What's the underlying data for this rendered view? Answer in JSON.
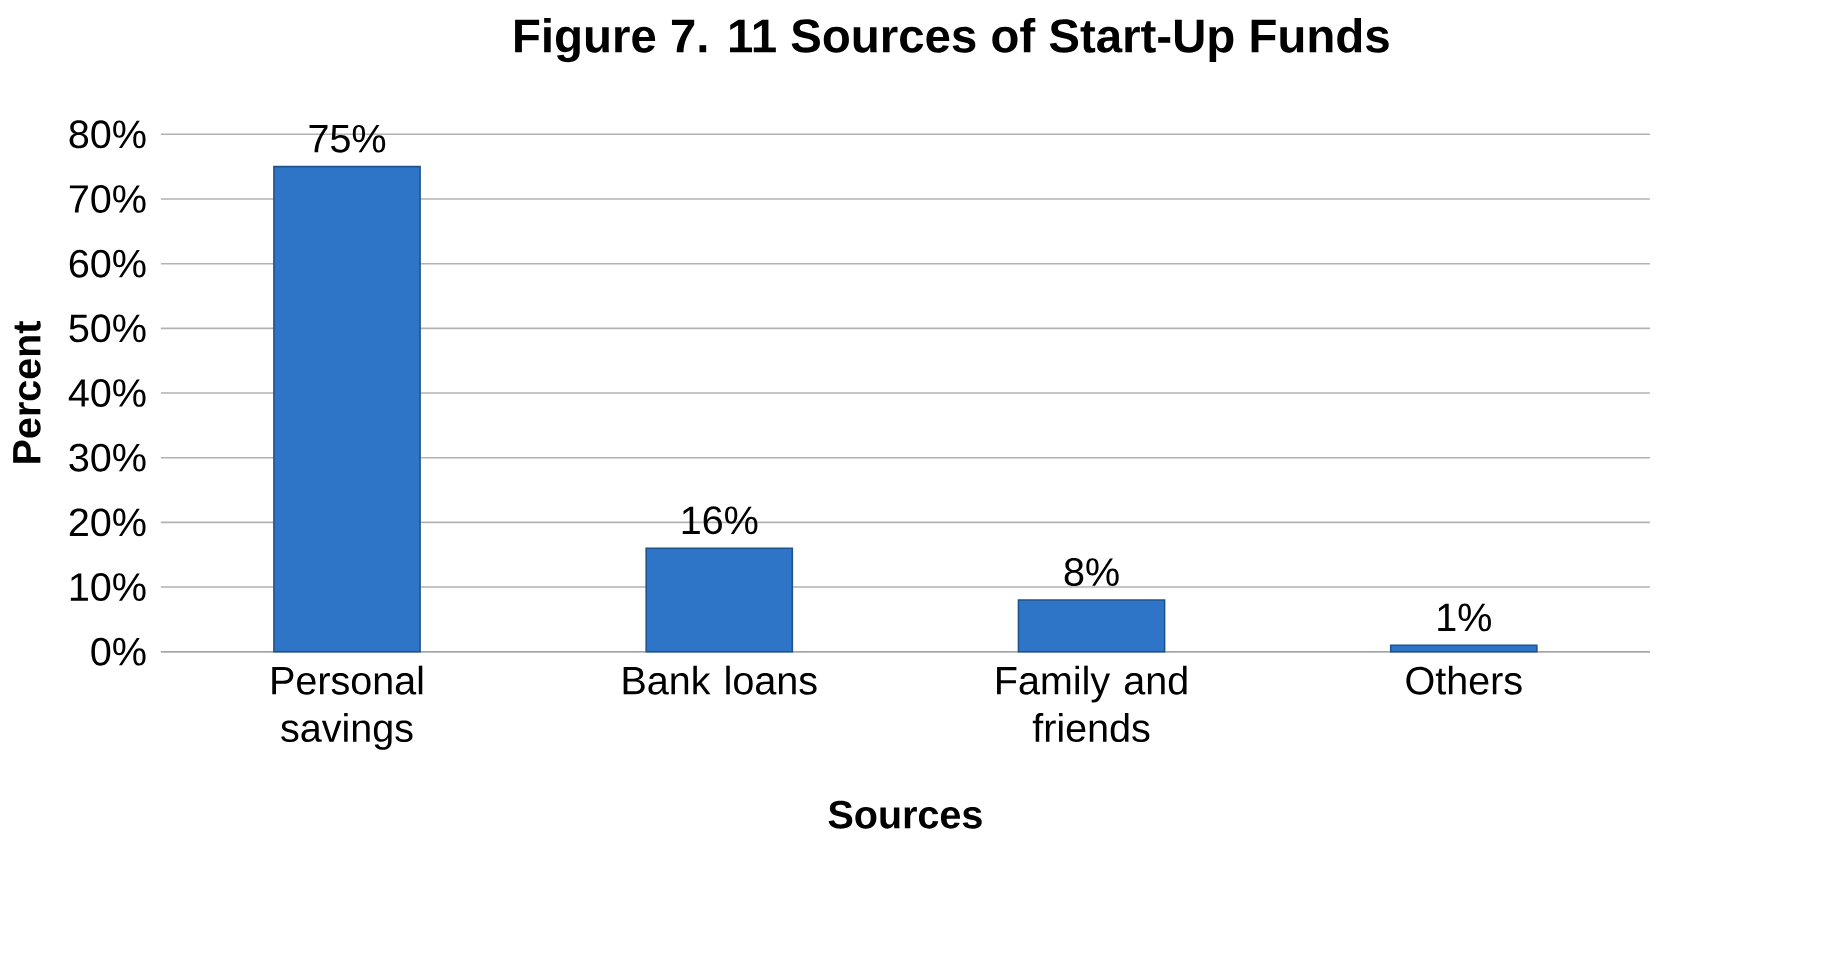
{
  "chart_data": {
    "type": "bar",
    "title": "Figure 7. 11 Sources of Start-Up Funds",
    "xlabel": "Sources",
    "ylabel": "Percent",
    "categories": [
      "Personal savings",
      "Bank loans",
      "Family and friends",
      "Others"
    ],
    "values": [
      75,
      16,
      8,
      1
    ],
    "value_labels": [
      "75%",
      "16%",
      "8%",
      "1%"
    ],
    "color": "#2e75c8",
    "ylim": [
      0,
      80
    ],
    "yticks": [
      {
        "value": 0,
        "label": "0%"
      },
      {
        "value": 10,
        "label": "10%"
      },
      {
        "value": 20,
        "label": "20%"
      },
      {
        "value": 30,
        "label": "30%"
      },
      {
        "value": 40,
        "label": "40%"
      },
      {
        "value": 50,
        "label": "50%"
      },
      {
        "value": 60,
        "label": "60%"
      },
      {
        "value": 70,
        "label": "70%"
      },
      {
        "value": 80,
        "label": "80%"
      }
    ],
    "grid": "y"
  }
}
